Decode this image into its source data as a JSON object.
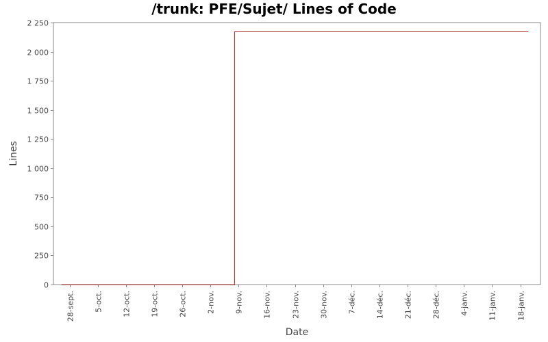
{
  "chart_data": {
    "type": "line",
    "title": "/trunk: PFE/Sujet/ Lines of Code",
    "xlabel": "Date",
    "ylabel": "Lines",
    "x_tick_labels": [
      "28-sept.",
      "5-oct.",
      "12-oct.",
      "19-oct.",
      "26-oct.",
      "2-nov.",
      "9-nov.",
      "16-nov.",
      "23-nov.",
      "30-nov.",
      "7-déc.",
      "14-déc.",
      "21-déc.",
      "28-déc.",
      "4-janv.",
      "11-janv.",
      "18-janv."
    ],
    "y_tick_labels": [
      "0",
      "250",
      "500",
      "750",
      "1 000",
      "1 250",
      "1 500",
      "1 750",
      "2 000",
      "2 250"
    ],
    "y_ticks": [
      0,
      250,
      500,
      750,
      1000,
      1250,
      1500,
      1750,
      2000,
      2250
    ],
    "ylim": [
      0,
      2250
    ],
    "xlim": [
      "2009-09-24",
      "2010-01-23"
    ],
    "grid": false,
    "legend": "none",
    "series": [
      {
        "color": "#b22222",
        "step": true,
        "points": [
          {
            "x": "2009-09-26",
            "y": 0
          },
          {
            "x": "2009-11-08",
            "y": 0
          },
          {
            "x": "2009-11-08",
            "y": 2175
          },
          {
            "x": "2010-01-20",
            "y": 2175
          }
        ]
      }
    ]
  }
}
